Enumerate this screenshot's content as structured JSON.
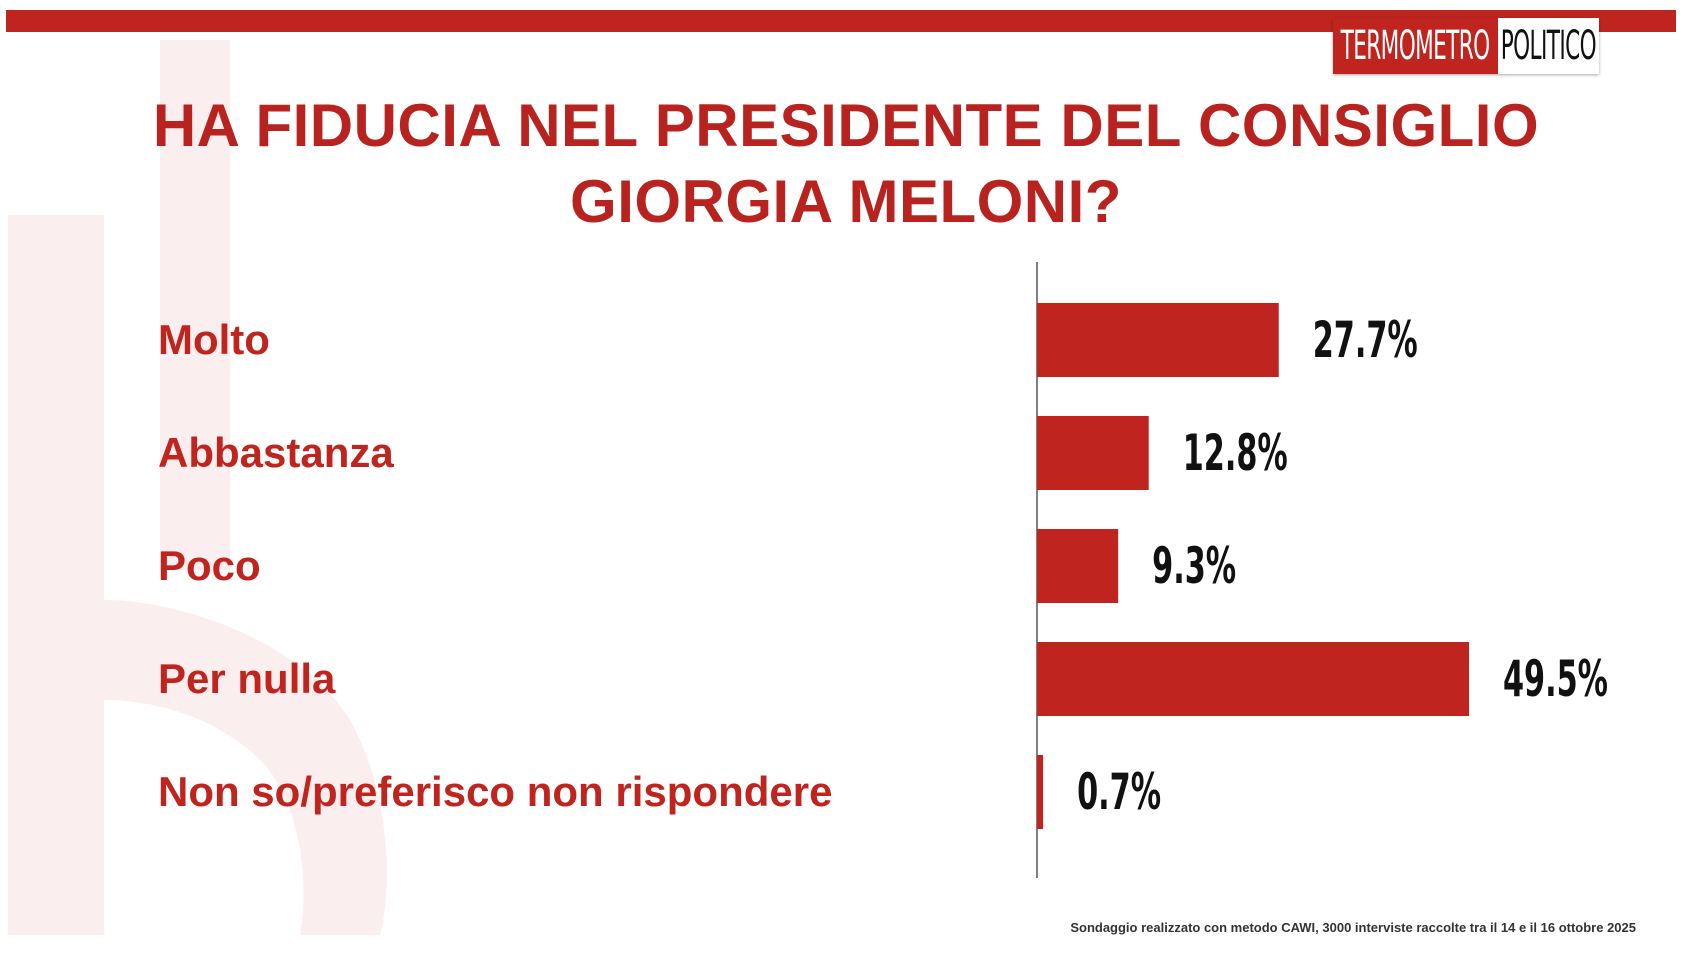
{
  "brand": {
    "logo_left": "TERMOMETRO",
    "logo_right": "POLITICO",
    "accent_color": "#c0241f"
  },
  "title": {
    "line1": "HA FIDUCIA NEL PRESIDENTE DEL CONSIGLIO",
    "line2": "GIORGIA MELONI?"
  },
  "chart_data": {
    "type": "bar",
    "orientation": "horizontal",
    "categories": [
      "Molto",
      "Abbastanza",
      "Poco",
      "Per nulla",
      "Non so/preferisco non rispondere"
    ],
    "values": [
      27.7,
      12.8,
      9.3,
      49.5,
      0.7
    ],
    "value_labels": [
      "27.7%",
      "12.8%",
      "9.3%",
      "49.5%",
      "0.7%"
    ],
    "bar_color": "#c0241f",
    "xlim": [
      0,
      49.5
    ],
    "grid": false,
    "legend": "none"
  },
  "footnote": "Sondaggio realizzato con metodo CAWI, 3000 interviste raccolte tra il 14 e il 16 ottobre  2025"
}
